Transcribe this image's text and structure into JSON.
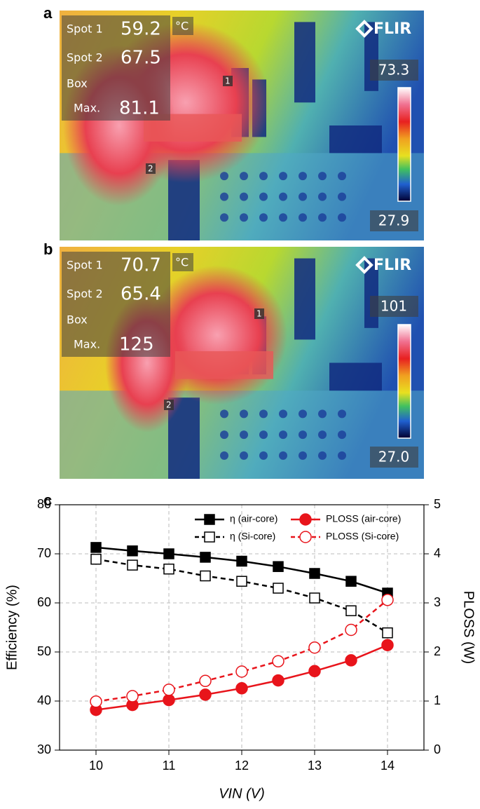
{
  "panel_a": {
    "label": "a",
    "spot1_label": "Spot 1",
    "spot1": 59.2,
    "spot2_label": "Spot 2",
    "spot2": 67.5,
    "box_label": "Box",
    "max_label": "Max.",
    "max": 81.1,
    "unit": "°C",
    "brand": "FLIR",
    "scale_max": 73.3,
    "scale_min": 27.9,
    "marker1": "1",
    "marker2": "2"
  },
  "panel_b": {
    "label": "b",
    "spot1_label": "Spot 1",
    "spot1": 70.7,
    "spot2_label": "Spot 2",
    "spot2": 65.4,
    "box_label": "Box",
    "max_label": "Max.",
    "max": 125,
    "unit": "°C",
    "brand": "FLIR",
    "scale_max": 101,
    "scale_min": "27.0",
    "marker1": "1",
    "marker2": "2"
  },
  "chart_data": {
    "type": "line",
    "label": "c",
    "x_label": "VIN (V)",
    "y_label": "Efficiency (%)",
    "y2_label": "PLOSS (W)",
    "x": [
      10,
      10.5,
      11,
      11.5,
      12,
      12.5,
      13,
      13.5,
      14
    ],
    "xlim": [
      9.5,
      14.5
    ],
    "xticks": [
      10,
      11,
      12,
      13,
      14
    ],
    "ylim": [
      30,
      80
    ],
    "yticks": [
      30,
      40,
      50,
      60,
      70,
      80
    ],
    "y2lim": [
      0,
      5
    ],
    "y2ticks": [
      0,
      1,
      2,
      3,
      4,
      5
    ],
    "grid": true,
    "series": [
      {
        "name": "η (air-core)",
        "color": "#000000",
        "line_style": "solid",
        "marker": "square",
        "filled": true,
        "values": [
          71.3,
          70.6,
          70.0,
          69.3,
          68.5,
          67.4,
          66.0,
          64.4,
          62.0
        ]
      },
      {
        "name": "η (Si-core)",
        "color": "#000000",
        "line_style": "dashed",
        "marker": "square",
        "filled": false,
        "values": [
          68.9,
          67.7,
          66.9,
          65.5,
          64.4,
          63.0,
          61.0,
          58.4,
          53.9
        ]
      },
      {
        "name": "PLOSS (air-core)",
        "color": "#e8141b",
        "line_style": "solid",
        "marker": "circle",
        "filled": true,
        "axis": "y2",
        "values": [
          0.82,
          0.92,
          1.02,
          1.13,
          1.26,
          1.42,
          1.61,
          1.83,
          2.14
        ]
      },
      {
        "name": "PLOSS (Si-core)",
        "color": "#e8141b",
        "line_style": "dashed",
        "marker": "circle",
        "filled": false,
        "axis": "y2",
        "values": [
          0.99,
          1.1,
          1.23,
          1.41,
          1.6,
          1.81,
          2.09,
          2.45,
          3.06
        ]
      }
    ]
  }
}
